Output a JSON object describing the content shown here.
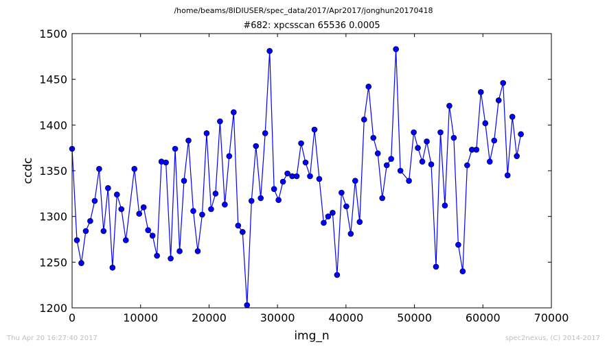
{
  "figure": {
    "suptitle": "/home/beams/8IDIUSER/spec_data/2017/Apr2017/jonghun20170418",
    "footer_left": "Thu Apr 20 16:27:40 2017",
    "footer_right": "spec2nexus, (C) 2014-2017"
  },
  "chart_data": {
    "type": "line",
    "title": "#682: xpcsscan 65536 0.0005",
    "xlabel": "img_n",
    "ylabel": "ccdc",
    "xlim": [
      0,
      70000
    ],
    "ylim": [
      1200,
      1500
    ],
    "xticks": [
      0,
      10000,
      20000,
      30000,
      40000,
      50000,
      60000,
      70000
    ],
    "yticks": [
      1200,
      1250,
      1300,
      1350,
      1400,
      1450,
      1500
    ],
    "grid": false,
    "marker": "circle",
    "color": "#0000ff",
    "series": [
      {
        "x": [
          0,
          700,
          1350,
          2000,
          2650,
          3300,
          3950,
          4600,
          5250,
          5900,
          6550,
          7200,
          7850,
          9100,
          9800,
          10450,
          11100,
          11750,
          12400,
          13050,
          13700,
          14400,
          15050,
          15700,
          16350,
          17000,
          17700,
          18350,
          19000,
          19650,
          20300,
          20950,
          21600,
          22300,
          22950,
          23600,
          24250,
          24900,
          25550,
          26200,
          26850,
          27550,
          28200,
          28850,
          29500,
          30150,
          30800,
          31450,
          32150,
          32800,
          33450,
          34100,
          34750,
          35400,
          36100,
          36750,
          37400,
          38050,
          38700,
          39350,
          40050,
          40700,
          41350,
          42000,
          42650,
          43300,
          44000,
          44650,
          45300,
          45950,
          46600,
          47300,
          47950,
          49200,
          49900,
          50500,
          51150,
          51800,
          52450,
          53150,
          53800,
          54450,
          55100,
          55750,
          56400,
          57050,
          57700,
          58400,
          59050,
          59700,
          60350,
          61000,
          61650,
          62300,
          62950,
          63600,
          64300,
          64950,
          65550
        ],
        "y": [
          1374,
          1274,
          1249,
          1284,
          1295,
          1317,
          1352,
          1284,
          1331,
          1244,
          1324,
          1308,
          1274,
          1352,
          1303,
          1310,
          1285,
          1279,
          1257,
          1360,
          1359,
          1254,
          1374,
          1262,
          1339,
          1383,
          1306,
          1262,
          1302,
          1391,
          1308,
          1325,
          1404,
          1313,
          1366,
          1414,
          1290,
          1283,
          1203,
          1317,
          1377,
          1320,
          1391,
          1481,
          1330,
          1318,
          1338,
          1347,
          1344,
          1344,
          1380,
          1359,
          1344,
          1395,
          1341,
          1293,
          1300,
          1304,
          1236,
          1326,
          1311,
          1281,
          1339,
          1294,
          1406,
          1442,
          1386,
          1369,
          1320,
          1356,
          1363,
          1483,
          1350,
          1339,
          1392,
          1375,
          1360,
          1382,
          1357,
          1245,
          1392,
          1312,
          1421,
          1386,
          1269,
          1240,
          1356,
          1373,
          1373,
          1436,
          1402,
          1360,
          1383,
          1427,
          1446,
          1345,
          1409,
          1366,
          1390
        ]
      }
    ]
  }
}
